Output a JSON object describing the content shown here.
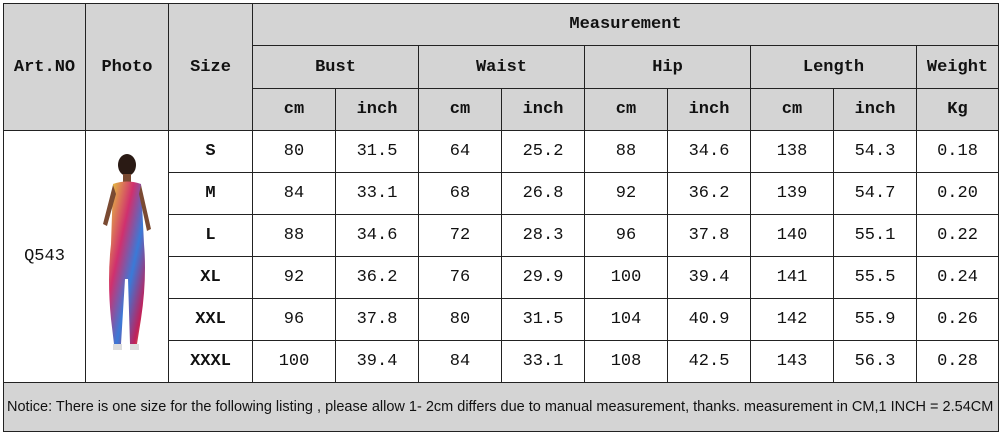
{
  "header": {
    "art_no": "Art.NO",
    "photo": "Photo",
    "size": "Size",
    "measurement": "Measurement",
    "groups": [
      "Bust",
      "Waist",
      "Hip",
      "Length",
      "Weight"
    ],
    "units": [
      "cm",
      "inch",
      "cm",
      "inch",
      "cm",
      "inch",
      "cm",
      "inch",
      "Kg"
    ]
  },
  "article": "Q543",
  "rows": [
    [
      "S",
      "80",
      "31.5",
      "64",
      "25.2",
      "88",
      "34.6",
      "138",
      "54.3",
      "0.18"
    ],
    [
      "M",
      "84",
      "33.1",
      "68",
      "26.8",
      "92",
      "36.2",
      "139",
      "54.7",
      "0.20"
    ],
    [
      "L",
      "88",
      "34.6",
      "72",
      "28.3",
      "96",
      "37.8",
      "140",
      "55.1",
      "0.22"
    ],
    [
      "XL",
      "92",
      "36.2",
      "76",
      "29.9",
      "100",
      "39.4",
      "141",
      "55.5",
      "0.24"
    ],
    [
      "XXL",
      "96",
      "37.8",
      "80",
      "31.5",
      "104",
      "40.9",
      "142",
      "55.9",
      "0.26"
    ],
    [
      "XXXL",
      "100",
      "39.4",
      "84",
      "33.1",
      "108",
      "42.5",
      "143",
      "56.3",
      "0.28"
    ]
  ],
  "notice": "Notice: There is one size for the following listing , please allow 1- 2cm differs due to manual measurement, thanks.  measurement in CM,1 INCH = 2.54CM"
}
